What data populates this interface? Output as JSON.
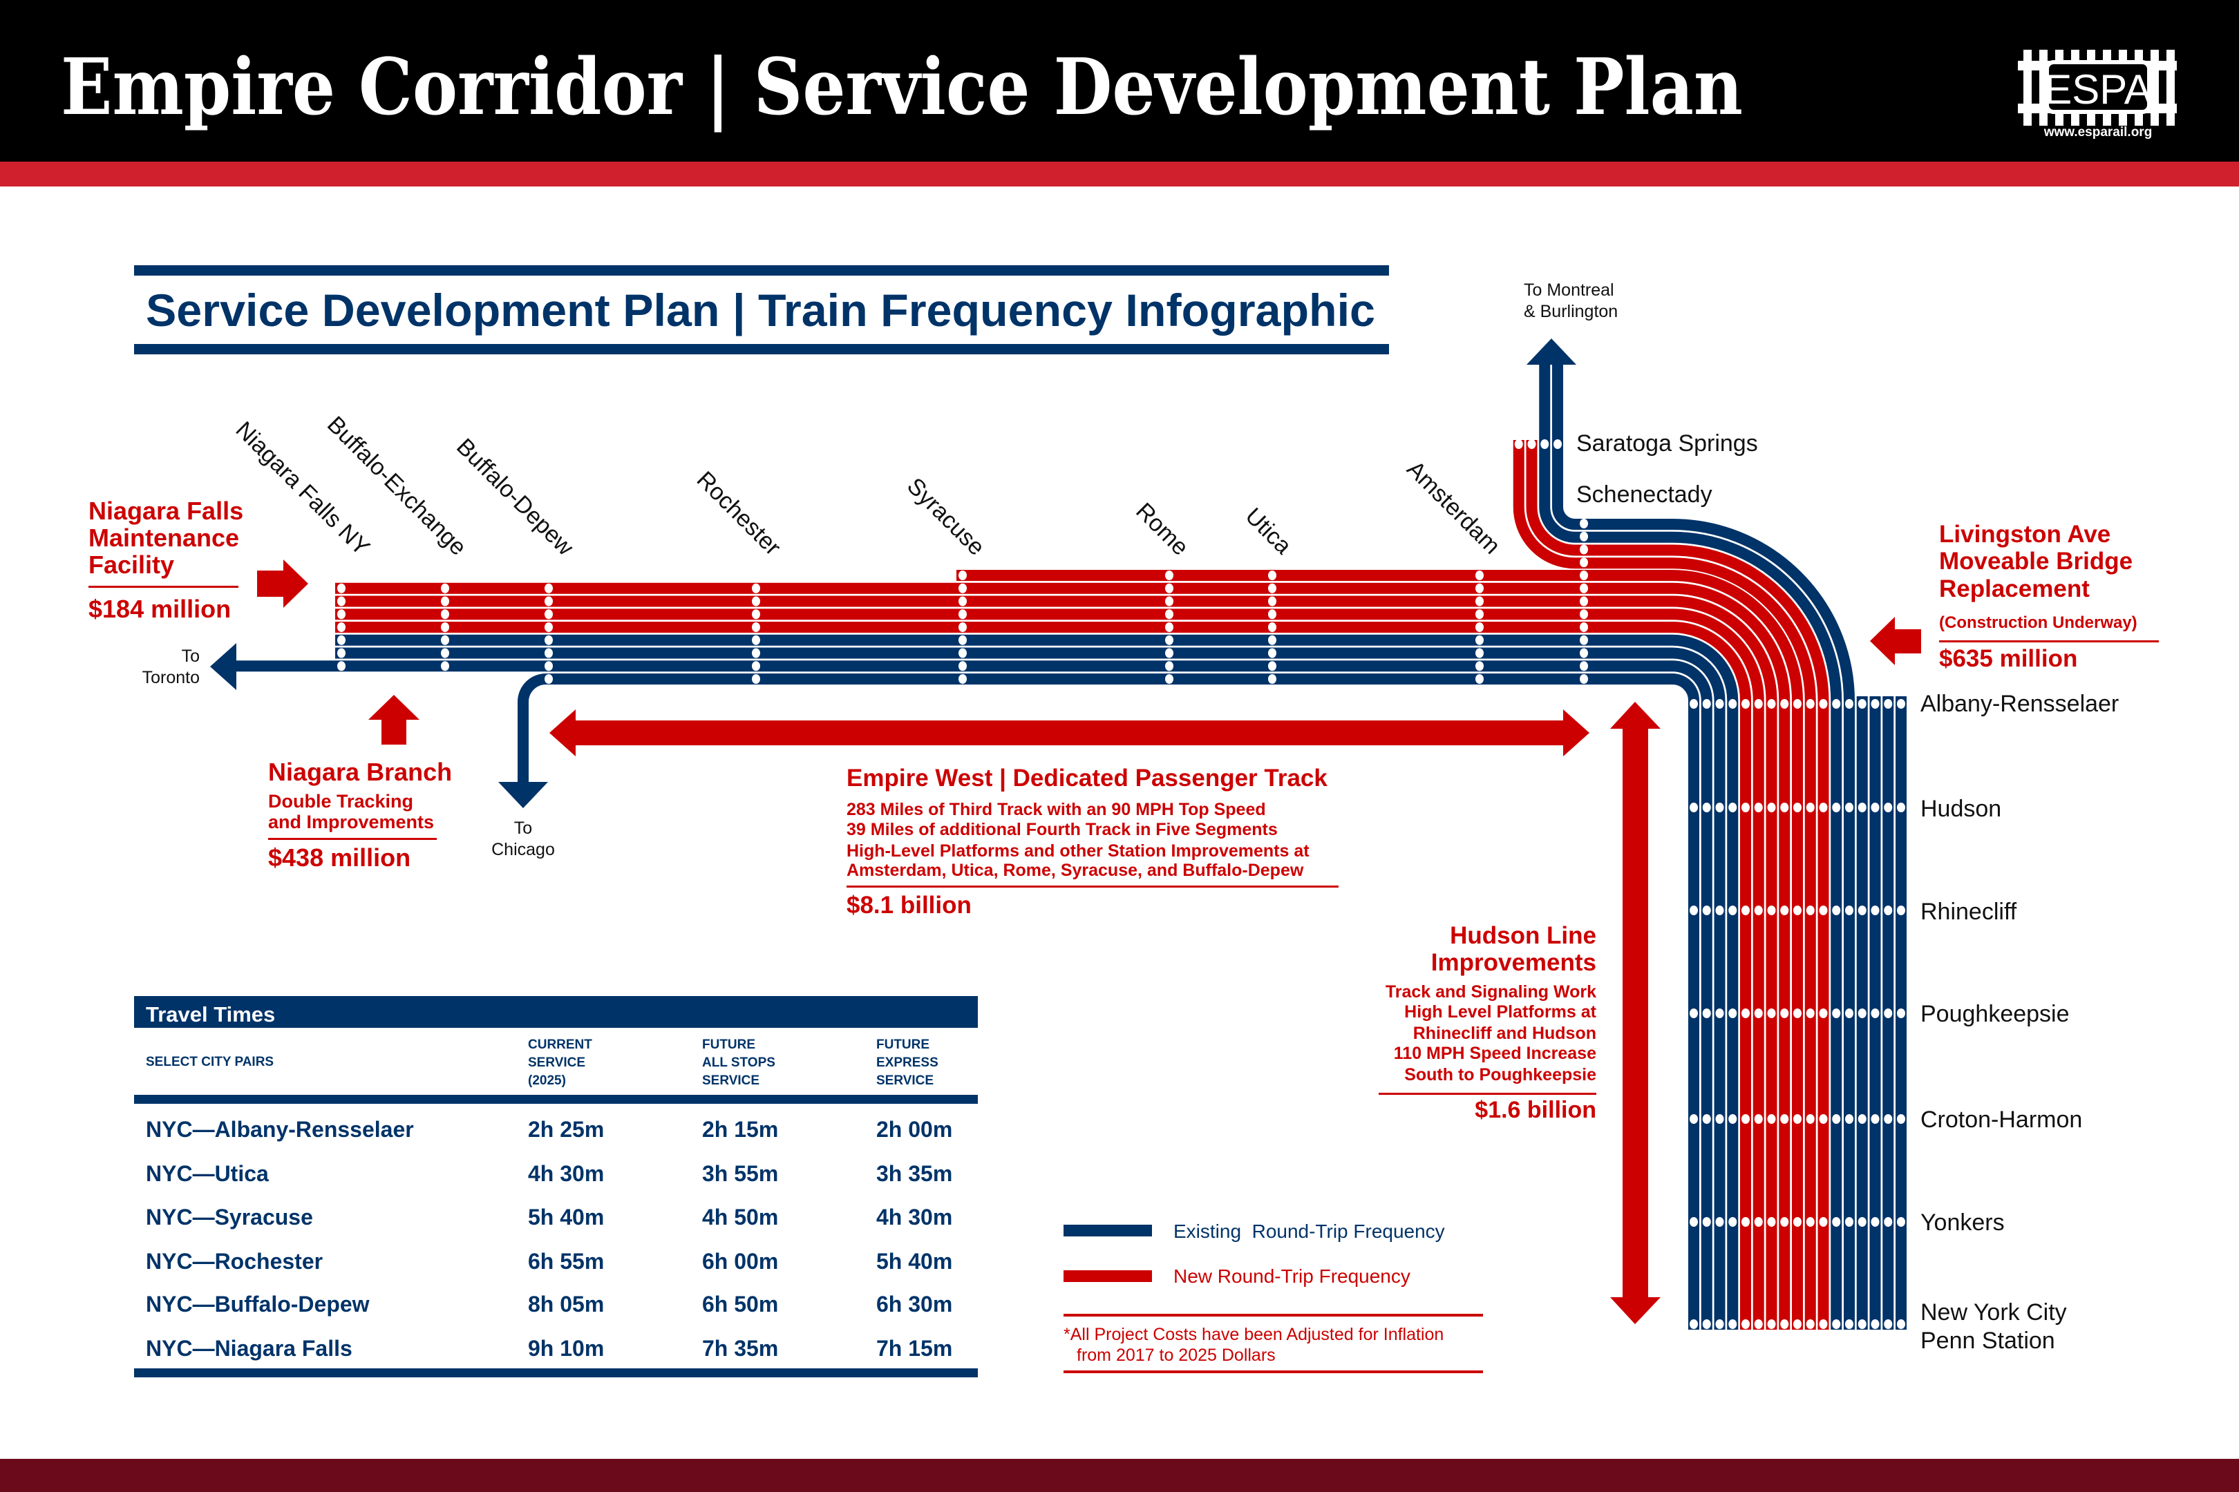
{
  "header": {
    "title": "Empire Corridor | Service Development Plan",
    "logo_text": "ESPA",
    "logo_url_text": "www.esparail.org"
  },
  "subtitle": "Service Development Plan | Train Frequency Infographic",
  "colors": {
    "existing": "#003368",
    "new": "#cc0000",
    "header_bg": "#000000",
    "header_stripe": "#d0202e",
    "footer": "#6b0a1a"
  },
  "stations_west": [
    "Niagara Falls NY",
    "Buffalo-Exchange",
    "Buffalo-Depew",
    "Rochester",
    "Syracuse",
    "Rome",
    "Utica",
    "Amsterdam"
  ],
  "stations_north": [
    "Saratoga Springs",
    "Schenectady"
  ],
  "stations_south": [
    "Albany-Rensselaer",
    "Hudson",
    "Rhinecliff",
    "Poughkeepsie",
    "Croton-Harmon",
    "Yonkers",
    "New York City",
    "Penn Station"
  ],
  "destinations": {
    "toronto": [
      "To",
      "Toronto"
    ],
    "chicago": [
      "To",
      "Chicago"
    ],
    "montreal": [
      "To Montreal",
      "& Burlington"
    ]
  },
  "projects": {
    "niagara_falls": {
      "title": [
        "Niagara Falls",
        "Maintenance",
        "Facility"
      ],
      "cost": "$184 million"
    },
    "niagara_branch": {
      "title": "Niagara Branch",
      "details": [
        "Double Tracking",
        "and Improvements"
      ],
      "cost": "$438 million"
    },
    "empire_west": {
      "title": "Empire West | Dedicated Passenger Track",
      "details": [
        "283 Miles of Third Track with an 90 MPH Top Speed",
        "39 Miles of additional Fourth Track in Five Segments",
        "High-Level Platforms and other Station Improvements at",
        "Amsterdam, Utica, Rome, Syracuse, and Buffalo-Depew"
      ],
      "cost": "$8.1 billion"
    },
    "hudson_line": {
      "title": [
        "Hudson Line",
        "Improvements"
      ],
      "details": [
        "Track and Signaling Work",
        "High Level Platforms at",
        "Rhinecliff and Hudson",
        "110 MPH Speed Increase",
        "South to Poughkeepsie"
      ],
      "cost": "$1.6 billion"
    },
    "livingston": {
      "title": [
        "Livingston Ave",
        "Moveable Bridge",
        "Replacement"
      ],
      "note": "(Construction Underway)",
      "cost": "$635 million"
    }
  },
  "travel_times": {
    "title": "Travel Times",
    "columns": [
      [
        "SELECT CITY PAIRS"
      ],
      [
        "CURRENT",
        "SERVICE",
        "(2025)"
      ],
      [
        "FUTURE",
        "ALL STOPS",
        "SERVICE"
      ],
      [
        "FUTURE",
        "EXPRESS",
        "SERVICE"
      ]
    ],
    "rows": [
      [
        "NYC—Albany-Rensselaer",
        "2h 25m",
        "2h 15m",
        "2h 00m"
      ],
      [
        "NYC—Utica",
        "4h 30m",
        "3h 55m",
        "3h 35m"
      ],
      [
        "NYC—Syracuse",
        "5h 40m",
        "4h 50m",
        "4h 30m"
      ],
      [
        "NYC—Rochester",
        "6h 55m",
        "6h 00m",
        "5h 40m"
      ],
      [
        "NYC—Buffalo-Depew",
        "8h 05m",
        "6h 50m",
        "6h 30m"
      ],
      [
        "NYC—Niagara Falls",
        "9h 10m",
        "7h 35m",
        "7h 15m"
      ]
    ]
  },
  "legend": {
    "existing": "Existing  Round-Trip Frequency",
    "new": "New Round-Trip Frequency",
    "footnote": [
      "*All Project Costs have been Adjusted for Inflation",
      "from 2017 to 2025 Dollars"
    ]
  },
  "frequencies": {
    "niagara_falls_to_buffalo_exchange": {
      "existing": 3,
      "new": 4
    },
    "buffalo_depew_to_rochester": {
      "existing": 4,
      "new": 4
    },
    "syracuse_to_amsterdam": {
      "existing": 4,
      "new": 5
    },
    "saratoga_branch": {
      "existing": 2,
      "new": 2
    },
    "albany_to_nyc": {
      "existing": 10,
      "new": 7
    }
  }
}
